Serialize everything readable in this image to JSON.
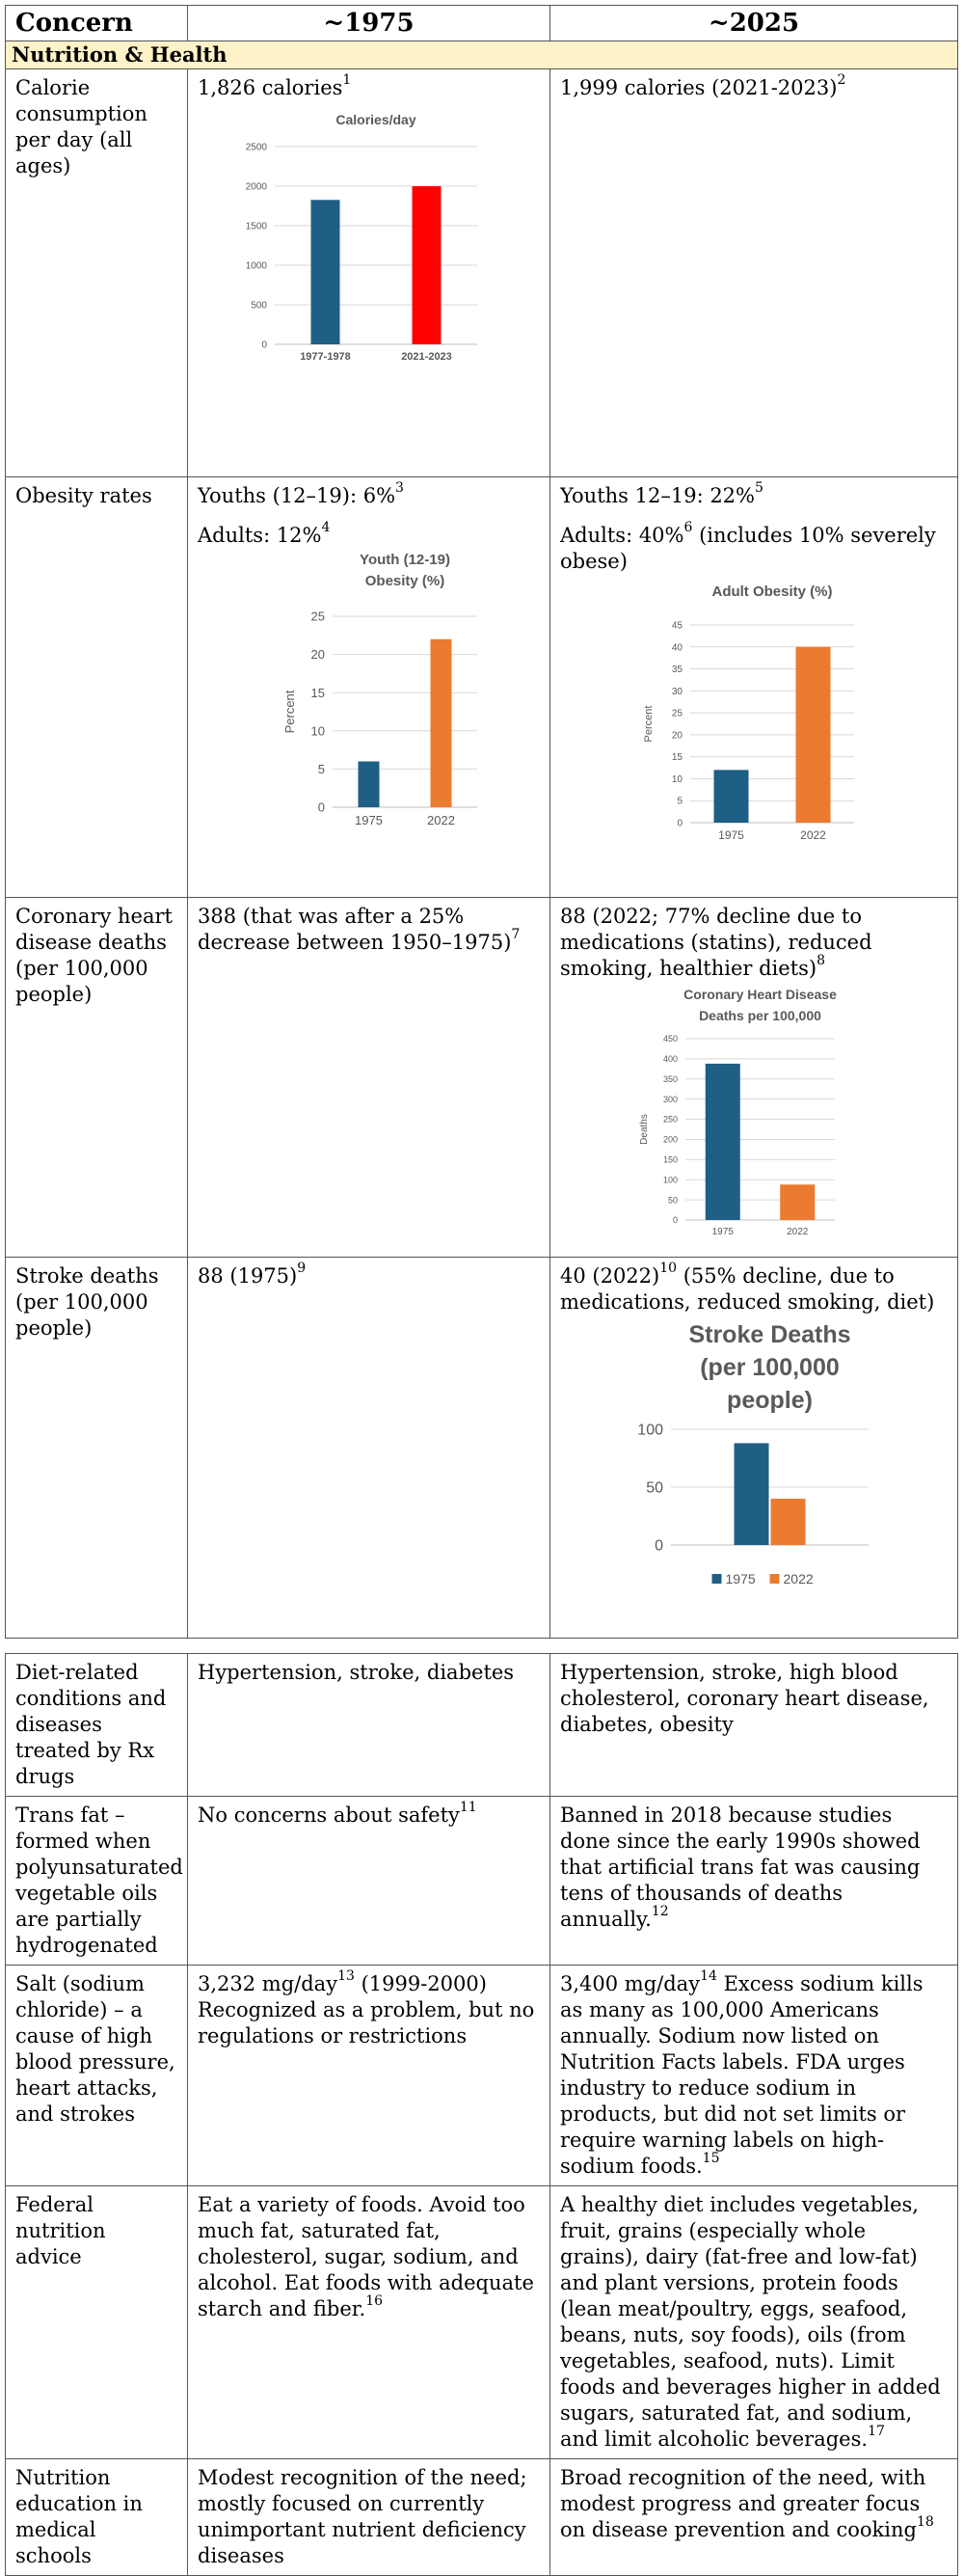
{
  "header": {
    "col1": "Concern",
    "col2": "~1975",
    "col3": "~2025"
  },
  "section": "Nutrition & Health",
  "rows": {
    "calorie": {
      "concern": "Calorie consumption per day (all ages)",
      "then": "1,826 calories",
      "then_fn": "1",
      "now": "1,999 calories (2021-2023)",
      "now_fn": "2"
    },
    "obesity": {
      "concern": "Obesity rates",
      "then_youth": "Youths (12–19): 6%",
      "then_youth_fn": "3",
      "then_adult": "Adults: 12%",
      "then_adult_fn": "4",
      "now_youth": "Youths 12–19: 22%",
      "now_youth_fn": "5",
      "now_adult_a": "Adults: 40%",
      "now_adult_fn": "6",
      "now_adult_b": " (includes 10% severely obese)"
    },
    "coronary": {
      "concern": "Coronary heart disease deaths (per 100,000 people)",
      "then": "388 (that was after a 25% decrease between 1950–1975)",
      "then_fn": "7",
      "now": "88 (2022; 77% decline due to medications (statins), reduced smoking, healthier diets)",
      "now_fn": "8"
    },
    "stroke": {
      "concern": "Stroke deaths (per 100,000 people)",
      "then": "88 (1975)",
      "then_fn": "9",
      "now_a": "40 (2022)",
      "now_fn": "10",
      "now_b": " (55% decline, due to medications, reduced smoking, diet)"
    },
    "diet": {
      "concern": "Diet-related conditions and diseases treated by Rx drugs",
      "then": "Hypertension, stroke, diabetes",
      "now": "Hypertension, stroke, high blood cholesterol, coronary heart disease, diabetes, obesity"
    },
    "transfat": {
      "concern": "Trans fat – formed when polyunsaturated vegetable oils are partially hydrogenated",
      "then": "No concerns about safety",
      "then_fn": "11",
      "now": "Banned in 2018 because studies done since the early 1990s showed that artificial trans fat was causing tens of thousands of deaths annually.",
      "now_fn": "12"
    },
    "salt": {
      "concern": "Salt (sodium chloride) – a cause of high blood pressure, heart attacks, and strokes",
      "then_a": "3,232 mg/day",
      "then_fn": "13",
      "then_b": " (1999-2000) Recognized as a problem, but no regulations or restrictions",
      "now_a": "3,400 mg/day",
      "now_fn": "14",
      "now_b": " Excess sodium kills as many as 100,000 Americans annually. Sodium now listed on Nutrition Facts labels. FDA urges industry to reduce sodium in products, but did not set limits or require warning labels on high-sodium foods.",
      "now_fn2": "15"
    },
    "federal": {
      "concern": "Federal nutrition advice",
      "then": "Eat a variety of foods. Avoid too much fat, saturated fat, cholesterol, sugar, sodium, and alcohol. Eat foods with adequate starch and fiber.",
      "then_fn": "16",
      "now": "A healthy diet includes vegetables, fruit, grains (especially whole grains), dairy (fat-free and low-fat) and plant versions, protein foods (lean meat/poultry, eggs, seafood, beans, nuts, soy foods), oils (from vegetables, seafood, nuts). Limit foods and beverages higher in added sugars, saturated fat, and sodium, and limit alcoholic beverages.",
      "now_fn": "17"
    },
    "education": {
      "concern": "Nutrition education in medical schools",
      "then": "Modest recognition of the need; mostly focused on currently unimportant nutrient deficiency diseases",
      "now": "Broad recognition of the need, with modest progress and greater focus on disease prevention and cooking",
      "now_fn": "18"
    }
  },
  "colors": {
    "blue": "#1f5f86",
    "red": "#ff0000",
    "orange": "#ec7a2f",
    "grid": "#d9d9d9",
    "axis_text": "#595959"
  },
  "chart_data": [
    {
      "id": "calories",
      "type": "bar",
      "title": "Calories/day",
      "categories": [
        "1977-1978",
        "2021-2023"
      ],
      "values": [
        1826,
        1999
      ],
      "colors": [
        "#1f5f86",
        "#ff0000"
      ],
      "ylim": [
        0,
        2500
      ],
      "yticks": [
        0,
        500,
        1000,
        1500,
        2000,
        2500
      ],
      "grid": true
    },
    {
      "id": "youth",
      "type": "bar",
      "title": [
        "Youth (12-19)",
        "Obesity (%)"
      ],
      "ylabel": "Percent",
      "categories": [
        "1975",
        "2022"
      ],
      "values": [
        6,
        22
      ],
      "colors": [
        "#1f5f86",
        "#ec7a2f"
      ],
      "ylim": [
        0,
        25
      ],
      "yticks": [
        0,
        5,
        10,
        15,
        20,
        25
      ],
      "grid": true
    },
    {
      "id": "adult",
      "type": "bar",
      "title": "Adult Obesity (%)",
      "ylabel": "Percent",
      "categories": [
        "1975",
        "2022"
      ],
      "values": [
        12,
        40
      ],
      "colors": [
        "#1f5f86",
        "#ec7a2f"
      ],
      "ylim": [
        0,
        45
      ],
      "yticks": [
        0,
        5,
        10,
        15,
        20,
        25,
        30,
        35,
        40,
        45
      ],
      "grid": true
    },
    {
      "id": "chd",
      "type": "bar",
      "title": [
        "Coronary Heart Disease",
        "Deaths per 100,000"
      ],
      "ylabel": "Deaths",
      "categories": [
        "1975",
        "2022"
      ],
      "values": [
        388,
        88
      ],
      "colors": [
        "#1f5f86",
        "#ec7a2f"
      ],
      "ylim": [
        0,
        450
      ],
      "yticks": [
        0,
        50,
        100,
        150,
        200,
        250,
        300,
        350,
        400,
        450
      ],
      "grid": true
    },
    {
      "id": "stroke",
      "type": "bar",
      "title": [
        "Stroke Deaths",
        "(per 100,000",
        "people)"
      ],
      "series": [
        {
          "name": "1975",
          "values": [
            88
          ]
        },
        {
          "name": "2022",
          "values": [
            40
          ]
        }
      ],
      "colors": [
        "#1f5f86",
        "#ec7a2f"
      ],
      "ylim": [
        0,
        100
      ],
      "yticks": [
        0,
        50,
        100
      ],
      "grid": true,
      "legend": "bottom"
    }
  ]
}
